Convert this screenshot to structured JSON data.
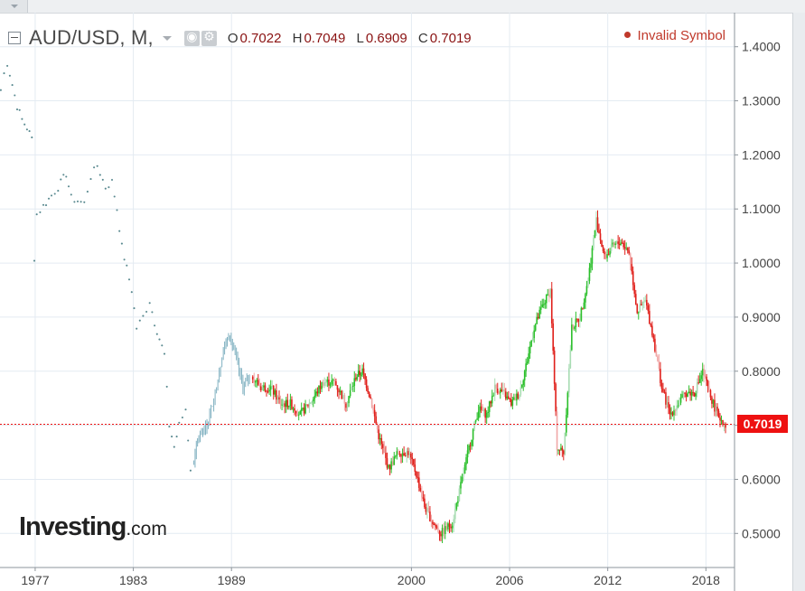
{
  "header": {
    "symbol_label": "AUD/USD, M,",
    "ohlc": [
      {
        "key": "O",
        "value": "0.7022"
      },
      {
        "key": "H",
        "value": "0.7049"
      },
      {
        "key": "L",
        "value": "0.6909"
      },
      {
        "key": "C",
        "value": "0.7019"
      }
    ],
    "status_text": "Invalid Symbol",
    "icons": [
      "toggle-collapse-icon",
      "dropdown-caret-icon",
      "eye-icon",
      "gear-icon"
    ]
  },
  "logo": {
    "main": "Investing",
    "suffix": ".com"
  },
  "colors": {
    "up": "#2bbf2b",
    "down": "#e0201b",
    "faded_up": "#a8dcb3",
    "faded_down": "#f0a8a8",
    "early": "#5a8a90",
    "early_bars": "#7fb0c0",
    "price_line": "#ee1111",
    "grid": "#e4ebf2",
    "axis_text": "#444444"
  },
  "chart_data": {
    "type": "candlestick",
    "title": "AUD/USD, M,",
    "interval": "monthly",
    "ohlc": {
      "open": 0.7022,
      "high": 0.7049,
      "low": 0.6909,
      "close": 0.7019
    },
    "last_price": 0.7019,
    "last_price_label": "0.7019",
    "x_ticks": [
      "1977",
      "1983",
      "1989",
      "2000",
      "2006",
      "2012",
      "2018"
    ],
    "x_tick_years": [
      1977,
      1983,
      1989,
      2000,
      2006,
      2012,
      2018
    ],
    "y_ticks": [
      "1.4000",
      "1.3000",
      "1.2000",
      "1.1000",
      "1.0000",
      "0.9000",
      "0.8000",
      "0.7000",
      "0.6000",
      "0.5000"
    ],
    "y_tick_values": [
      1.4,
      1.3,
      1.2,
      1.1,
      1.0,
      0.9,
      0.8,
      0.7,
      0.6,
      0.5
    ],
    "xlim": [
      1974.85,
      2019.75
    ],
    "ylim": [
      0.437,
      1.463
    ],
    "grid": true,
    "series": [
      {
        "style": "dots",
        "points": [
          [
            1974.9,
            1.32
          ],
          [
            1975.1,
            1.35
          ],
          [
            1975.3,
            1.37
          ],
          [
            1975.6,
            1.33
          ],
          [
            1975.9,
            1.29
          ],
          [
            1976.2,
            1.265
          ],
          [
            1976.5,
            1.25
          ],
          [
            1976.8,
            1.23
          ],
          [
            1976.95,
            1.01
          ],
          [
            1977.1,
            1.09
          ],
          [
            1977.5,
            1.105
          ],
          [
            1978.0,
            1.125
          ],
          [
            1978.4,
            1.14
          ],
          [
            1978.9,
            1.165
          ],
          [
            1979.2,
            1.12
          ],
          [
            1979.6,
            1.115
          ],
          [
            1980.0,
            1.11
          ],
          [
            1980.4,
            1.16
          ],
          [
            1980.8,
            1.18
          ],
          [
            1981.3,
            1.14
          ],
          [
            1981.7,
            1.15
          ],
          [
            1982.0,
            1.1
          ],
          [
            1982.3,
            1.03
          ],
          [
            1982.6,
            0.99
          ],
          [
            1982.9,
            0.95
          ],
          [
            1983.2,
            0.88
          ],
          [
            1983.6,
            0.9
          ],
          [
            1984.0,
            0.93
          ],
          [
            1984.3,
            0.89
          ],
          [
            1984.6,
            0.86
          ],
          [
            1984.9,
            0.83
          ],
          [
            1985.2,
            0.7
          ],
          [
            1985.5,
            0.66
          ],
          [
            1985.8,
            0.7
          ],
          [
            1986.2,
            0.73
          ],
          [
            1986.5,
            0.62
          ]
        ]
      },
      {
        "style": "bars",
        "points": [
          [
            1986.7,
            0.63
          ],
          [
            1987.0,
            0.68
          ],
          [
            1987.5,
            0.7
          ],
          [
            1988.0,
            0.76
          ],
          [
            1988.5,
            0.84
          ],
          [
            1988.9,
            0.87
          ],
          [
            1989.3,
            0.82
          ],
          [
            1989.7,
            0.77
          ],
          [
            1990.1,
            0.79
          ]
        ]
      },
      {
        "style": "candles",
        "points": [
          [
            1990.3,
            0.79
          ],
          [
            1990.8,
            0.77
          ],
          [
            1991.4,
            0.77
          ],
          [
            1992.0,
            0.74
          ],
          [
            1992.6,
            0.74
          ],
          [
            1993.2,
            0.72
          ],
          [
            1994.0,
            0.75
          ],
          [
            1994.6,
            0.78
          ],
          [
            1995.3,
            0.78
          ],
          [
            1996.0,
            0.74
          ],
          [
            1996.6,
            0.79
          ],
          [
            1997.0,
            0.8
          ],
          [
            1997.5,
            0.75
          ],
          [
            1998.0,
            0.68
          ],
          [
            1998.6,
            0.62
          ],
          [
            1999.2,
            0.65
          ],
          [
            1999.8,
            0.65
          ],
          [
            2000.3,
            0.61
          ],
          [
            2000.8,
            0.55
          ],
          [
            2001.3,
            0.52
          ],
          [
            2001.8,
            0.5
          ],
          [
            2002.5,
            0.52
          ],
          [
            2003.1,
            0.6
          ],
          [
            2003.6,
            0.67
          ],
          [
            2004.1,
            0.73
          ],
          [
            2004.6,
            0.72
          ],
          [
            2005.1,
            0.77
          ],
          [
            2005.6,
            0.76
          ],
          [
            2006.1,
            0.74
          ],
          [
            2006.6,
            0.76
          ],
          [
            2007.0,
            0.81
          ],
          [
            2007.5,
            0.88
          ],
          [
            2008.0,
            0.92
          ],
          [
            2008.5,
            0.95
          ],
          [
            2008.9,
            0.66
          ],
          [
            2009.3,
            0.65
          ],
          [
            2009.8,
            0.88
          ],
          [
            2010.3,
            0.9
          ],
          [
            2010.8,
            0.97
          ],
          [
            2011.3,
            1.08
          ],
          [
            2011.8,
            1.01
          ],
          [
            2012.3,
            1.03
          ],
          [
            2012.8,
            1.04
          ],
          [
            2013.3,
            1.02
          ],
          [
            2013.8,
            0.91
          ],
          [
            2014.3,
            0.93
          ],
          [
            2014.8,
            0.86
          ],
          [
            2015.3,
            0.77
          ],
          [
            2015.8,
            0.72
          ],
          [
            2016.3,
            0.74
          ],
          [
            2016.8,
            0.76
          ],
          [
            2017.3,
            0.76
          ],
          [
            2017.8,
            0.8
          ],
          [
            2018.2,
            0.76
          ],
          [
            2018.7,
            0.72
          ],
          [
            2019.2,
            0.702
          ]
        ]
      }
    ]
  }
}
